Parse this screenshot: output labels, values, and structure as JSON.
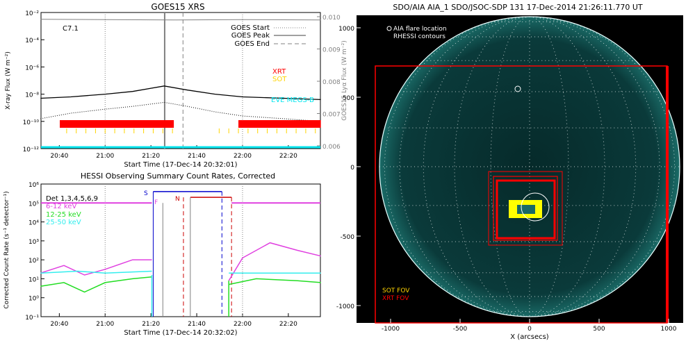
{
  "colors": {
    "xrt": "#ff0000",
    "sot": "#ffd400",
    "eve": "#00e5ee",
    "magenta": "#e040e0",
    "green": "#22dd22",
    "cyan": "#33eeee",
    "blue": "#0000cc",
    "gray": "#808080"
  },
  "chart_data": [
    {
      "id": "goes",
      "type": "line",
      "title": "GOES15 XRS",
      "xlabel": "Start Time (17-Dec-14 20:32:01)",
      "ylabel": "X-ray Flux (W m⁻²)",
      "ylabel_right": "GOES15 Lyα Flux (W m⁻²)",
      "x_ticks": [
        "20:40",
        "21:00",
        "21:20",
        "21:40",
        "22:00",
        "22:20"
      ],
      "y_ticks": [
        "10⁻¹²",
        "10⁻¹⁰",
        "10⁻⁸",
        "10⁻⁶",
        "10⁻⁴",
        "10⁻²"
      ],
      "y_ticks_right": [
        "0.006",
        "0.007",
        "0.008",
        "0.009",
        "0.010"
      ],
      "ylim_log": [
        -12,
        -2
      ],
      "xlim": [
        "20:32",
        "22:34"
      ],
      "class_label": "C7.1",
      "legend": [
        "GOES Start",
        "GOES Peak",
        "GOES End"
      ],
      "labels": {
        "xrt": "XRT",
        "sot": "SOT",
        "eve": "EVE MEGS-B"
      },
      "event_times": {
        "start": "21:26",
        "peak": "21:26",
        "end": "21:34"
      },
      "series": [
        {
          "values_log": [
            [
              20.53,
              -8.3
            ],
            [
              20.75,
              -8.2
            ],
            [
              21.0,
              -8.0
            ],
            [
              21.2,
              -7.8
            ],
            [
              21.43,
              -7.4
            ],
            [
              21.6,
              -7.7
            ],
            [
              21.8,
              -8.0
            ],
            [
              22.0,
              -8.2
            ],
            [
              22.3,
              -8.3
            ],
            [
              22.57,
              -8.4
            ]
          ]
        },
        {
          "values_log": [
            [
              20.53,
              -9.8
            ],
            [
              20.75,
              -9.4
            ],
            [
              21.0,
              -9.1
            ],
            [
              21.2,
              -8.9
            ],
            [
              21.43,
              -8.6
            ],
            [
              21.6,
              -8.9
            ],
            [
              21.8,
              -9.3
            ],
            [
              22.0,
              -9.6
            ],
            [
              22.3,
              -9.8
            ],
            [
              22.57,
              -10.0
            ]
          ]
        },
        {
          "values_log": [
            [
              20.53,
              -2.5
            ],
            [
              21.0,
              -2.52
            ],
            [
              21.5,
              -2.55
            ],
            [
              22.0,
              -2.52
            ],
            [
              22.57,
              -2.55
            ]
          ]
        }
      ]
    },
    {
      "id": "hessi",
      "type": "line",
      "title": "HESSI Observing Summary Count Rates, Corrected",
      "xlabel": "Start Time (17-Dec-14 20:32:02)",
      "ylabel": "Corrected Count Rate (s⁻¹ detector⁻¹)",
      "x_ticks": [
        "20:40",
        "21:00",
        "21:20",
        "21:40",
        "22:00",
        "22:20"
      ],
      "y_ticks": [
        "10⁻¹",
        "10⁰",
        "10¹",
        "10²",
        "10³",
        "10⁴",
        "10⁵",
        "10⁶"
      ],
      "ylim_log": [
        -1,
        6
      ],
      "legend": [
        "Det 1,3,4,5,6,9",
        "6-12 keV",
        "12-25 keV",
        "25-50 keV"
      ],
      "markers": {
        "s": "S",
        "f": "F",
        "n": "N"
      },
      "series": [
        {
          "values_log": [
            [
              20.53,
              1.3
            ],
            [
              20.7,
              1.7
            ],
            [
              20.85,
              1.2
            ],
            [
              21.0,
              1.5
            ],
            [
              21.2,
              2.0
            ],
            [
              21.34,
              2.0
            ],
            [
              21.9,
              0.9
            ],
            [
              22.0,
              2.1
            ],
            [
              22.2,
              2.9
            ],
            [
              22.4,
              2.5
            ],
            [
              22.57,
              2.2
            ]
          ]
        },
        {
          "values_log": [
            [
              20.53,
              0.6
            ],
            [
              20.7,
              0.8
            ],
            [
              20.85,
              0.3
            ],
            [
              21.0,
              0.8
            ],
            [
              21.2,
              1.0
            ],
            [
              21.34,
              1.1
            ],
            [
              21.9,
              0.7
            ],
            [
              22.1,
              1.0
            ],
            [
              22.4,
              0.9
            ],
            [
              22.57,
              0.8
            ]
          ]
        },
        {
          "values_log": [
            [
              20.53,
              1.3
            ],
            [
              20.8,
              1.4
            ],
            [
              21.0,
              1.3
            ],
            [
              21.34,
              1.4
            ],
            [
              21.9,
              1.3
            ],
            [
              22.2,
              1.3
            ],
            [
              22.57,
              1.3
            ]
          ]
        }
      ]
    },
    {
      "id": "aia",
      "type": "image",
      "title": "SDO/AIA AIA_1 SDO/JSOC-SDP 131 17-Dec-2014 21:26:11.770 UT",
      "xlabel": "X (arcsecs)",
      "x_ticks": [
        "-1000",
        "-500",
        "0",
        "500",
        "1000"
      ],
      "y_ticks": [
        "-1000",
        "-500",
        "0",
        "500",
        "1000"
      ],
      "legend": [
        "AIA flare location",
        "RHESSI contours"
      ],
      "fov_labels": [
        "SOT FOV",
        "XRT FOV"
      ]
    }
  ]
}
